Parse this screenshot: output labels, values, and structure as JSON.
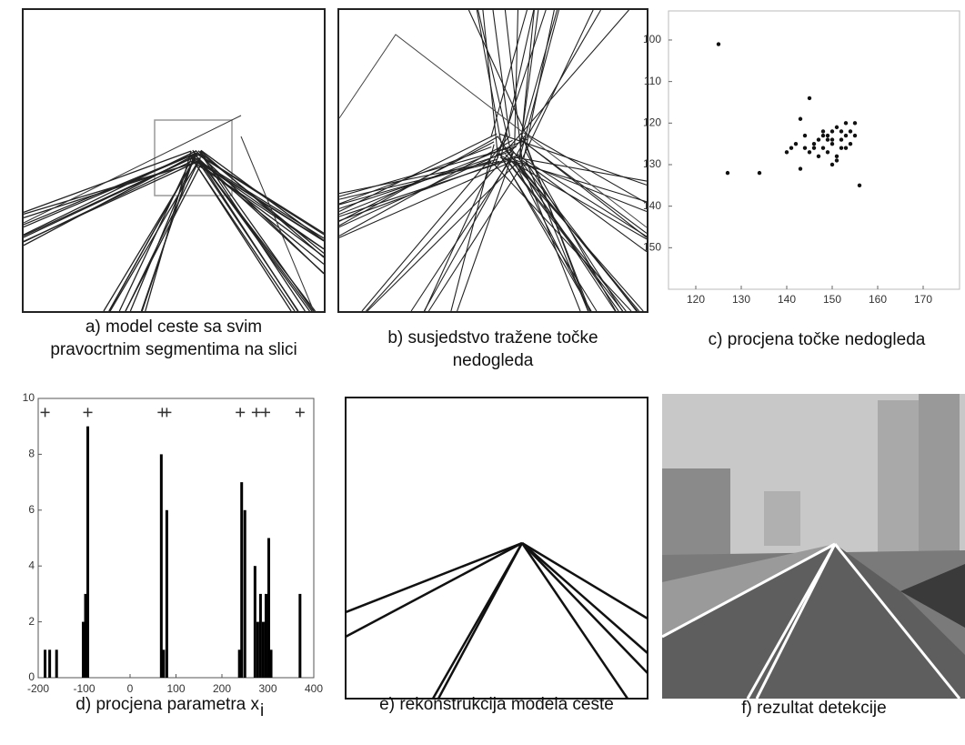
{
  "panels": [
    {
      "caption": [
        "a) model ceste sa svim",
        "pravocrtnim segmentima na slici"
      ]
    },
    {
      "caption": [
        "b) susjedstvo tražene točke",
        "nedogleda"
      ]
    },
    {
      "caption": [
        "c) procjena točke nedogleda"
      ]
    },
    {
      "caption": [
        "d) procjena parametra x"
      ],
      "subscript": "i"
    },
    {
      "caption": [
        "e) rekonstrukcija modela ceste"
      ]
    },
    {
      "caption": [
        "f) rezultat detekcije"
      ]
    }
  ],
  "chart_data": [
    {
      "type": "scatter",
      "x": [
        125,
        127,
        134,
        143,
        145,
        143,
        156,
        140,
        142,
        144,
        145,
        146,
        147,
        148,
        148,
        149,
        149,
        150,
        150,
        151,
        151,
        152,
        152,
        153,
        153,
        154,
        154,
        155,
        147,
        149,
        151,
        146,
        148,
        150,
        152,
        144,
        153,
        141,
        155,
        150
      ],
      "y": [
        101,
        132,
        132,
        131,
        114,
        119,
        135,
        127,
        125,
        123,
        127,
        126,
        124,
        122,
        126,
        123,
        127,
        122,
        125,
        121,
        128,
        124,
        126,
        120,
        123,
        122,
        125,
        123,
        128,
        124,
        129,
        125,
        123,
        130,
        122,
        126,
        126,
        126,
        120,
        124
      ],
      "xlim": [
        114,
        178
      ],
      "ylim": [
        160,
        93
      ],
      "xticks": [
        120,
        130,
        140,
        150,
        160,
        170
      ],
      "yticks": [
        100,
        110,
        120,
        130,
        140,
        150
      ],
      "color": "#111111"
    },
    {
      "type": "bar",
      "x": [
        -185,
        -175,
        -160,
        -102,
        -97,
        -92,
        68,
        73,
        80,
        238,
        243,
        250,
        272,
        278,
        284,
        290,
        296,
        302,
        307,
        370
      ],
      "values": [
        1,
        1,
        1,
        2,
        3,
        9,
        8,
        1,
        6,
        1,
        7,
        6,
        4,
        2,
        3,
        2,
        3,
        5,
        1,
        3
      ],
      "markers": {
        "x": [
          -185,
          -92,
          70,
          80,
          240,
          275,
          295,
          370
        ],
        "y": [
          9.5,
          9.5,
          9.5,
          9.5,
          9.5,
          9.5,
          9.5,
          9.5
        ]
      },
      "xlim": [
        -200,
        400
      ],
      "ylim": [
        0,
        10
      ],
      "xticks": [
        -200,
        -100,
        0,
        100,
        200,
        300,
        400
      ],
      "yticks": [
        0,
        2,
        4,
        6,
        8,
        10
      ],
      "color": "#000000"
    }
  ]
}
